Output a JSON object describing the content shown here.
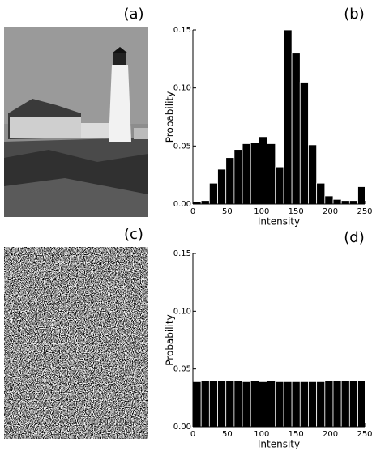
{
  "images": [
    {
      "label": "(a)"
    },
    {
      "label": "(c)"
    }
  ],
  "chart_data": [
    {
      "type": "histogram",
      "panel_label": "(b)",
      "x_label": "Intensity",
      "y_label": "Probability",
      "color": "#000000",
      "bins": [
        0,
        12,
        24,
        36,
        48,
        60,
        72,
        84,
        96,
        108,
        120,
        132,
        144,
        156,
        168,
        180,
        192,
        204,
        216,
        228,
        240,
        252
      ],
      "values": [
        0.002,
        0.003,
        0.018,
        0.03,
        0.04,
        0.047,
        0.052,
        0.053,
        0.058,
        0.052,
        0.032,
        0.15,
        0.13,
        0.105,
        0.051,
        0.018,
        0.007,
        0.004,
        0.003,
        0.003,
        0.015
      ],
      "xlim": [
        0,
        250
      ],
      "ylim": [
        0,
        0.15
      ],
      "xticks": [
        0,
        50,
        100,
        150,
        200,
        250
      ],
      "yticks": [
        {
          "value": 0,
          "label": "0.00"
        },
        {
          "value": 0.05,
          "label": "0.05"
        },
        {
          "value": 0.1,
          "label": "0.10"
        },
        {
          "value": 0.15,
          "label": "0.15"
        }
      ]
    },
    {
      "type": "histogram",
      "panel_label": "(d)",
      "x_label": "Intensity",
      "y_label": "Probability",
      "color": "#000000",
      "bins": [
        0,
        12,
        24,
        36,
        48,
        60,
        72,
        84,
        96,
        108,
        120,
        132,
        144,
        156,
        168,
        180,
        192,
        204,
        216,
        228,
        240,
        252
      ],
      "values": [
        0.039,
        0.04,
        0.04,
        0.04,
        0.04,
        0.04,
        0.039,
        0.04,
        0.039,
        0.04,
        0.039,
        0.039,
        0.039,
        0.039,
        0.039,
        0.039,
        0.04,
        0.04,
        0.04,
        0.04,
        0.04
      ],
      "xlim": [
        0,
        250
      ],
      "ylim": [
        0,
        0.15
      ],
      "xticks": [
        0,
        50,
        100,
        150,
        200,
        250
      ],
      "yticks": [
        {
          "value": 0,
          "label": "0.00"
        },
        {
          "value": 0.05,
          "label": "0.05"
        },
        {
          "value": 0.1,
          "label": "0.10"
        },
        {
          "value": 0.15,
          "label": "0.15"
        }
      ]
    }
  ]
}
